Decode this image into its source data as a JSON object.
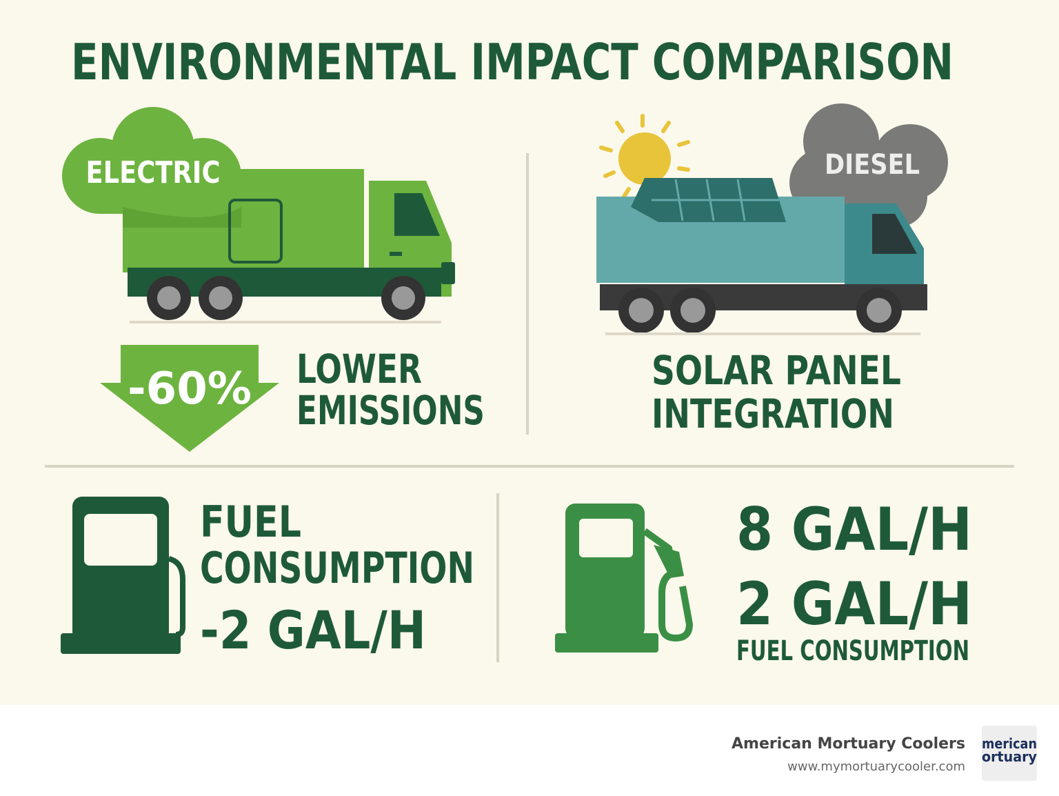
{
  "header": {
    "title": "ENVIRONMENTAL IMPACT COMPARISON"
  },
  "electric": {
    "label": "ELECTRIC",
    "badge": "-60%",
    "caption": [
      "LOWER",
      "EMISSIONS"
    ]
  },
  "diesel": {
    "label": "DIESEL",
    "caption": [
      "SOLAR PANEL",
      "INTEGRATION"
    ]
  },
  "fuel_left": {
    "lines": [
      "FUEL",
      "CONSUMPTION",
      "-2 GAL/H"
    ]
  },
  "fuel_right": {
    "lines": [
      "8 GAL/H",
      "2 GAL/H",
      "FUEL CONSUMPTION"
    ]
  },
  "footer": {
    "company": "American Mortuary Coolers",
    "url": "www.mymortuarycooler.com",
    "logo": [
      "merican",
      "ortuary"
    ]
  }
}
